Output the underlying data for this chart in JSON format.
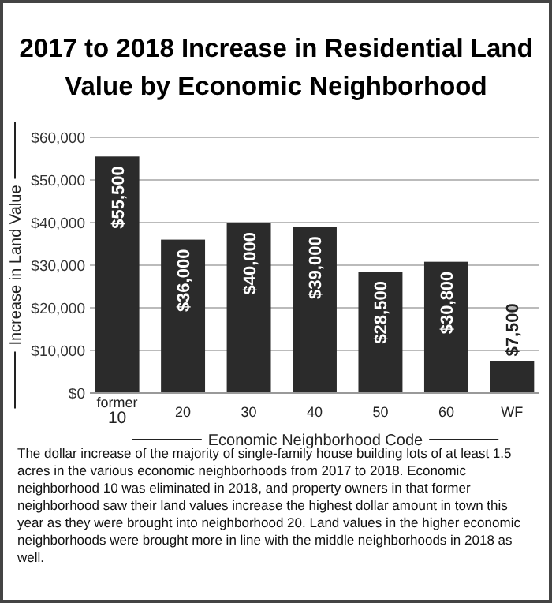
{
  "chart_data": {
    "type": "bar",
    "title": "2017 to 2018 Increase in Residential Land Value by Economic Neighborhood",
    "xlabel": "Economic Neighborhood Code",
    "ylabel": "Increase in Land Value",
    "categories": [
      "former 10",
      "20",
      "30",
      "40",
      "50",
      "60",
      "WF"
    ],
    "values": [
      55500,
      36000,
      40000,
      39000,
      28500,
      30800,
      7500
    ],
    "value_labels": [
      "$55,500",
      "$36,000",
      "$40,000",
      "$39,000",
      "$28,500",
      "$30,800",
      "$7,500"
    ],
    "color": "#2b2b2b",
    "ylim": [
      0,
      60000
    ],
    "yticks": [
      {
        "value": 0,
        "label": "$0"
      },
      {
        "value": 10000,
        "label": "$10,000"
      },
      {
        "value": 20000,
        "label": "$20,000"
      },
      {
        "value": 30000,
        "label": "$30,000"
      },
      {
        "value": 40000,
        "label": "$40,000"
      },
      {
        "value": 50000,
        "label": "$50,000"
      },
      {
        "value": 60000,
        "label": "$60,000"
      }
    ],
    "grid": "y",
    "annotations": [
      "The dollar increase of the majority of single-family house building lots of at least 1.5 acres in the various economic neighborhoods from 2017 to 2018. Economic neighborhood 10 was eliminated in 2018, and property owners in that former neighborhood saw their land values increase the highest dollar amount in town this year as they were brought into neighborhood 20. Land values in the higher economic neighborhoods were brought more in line with the middle neighborhoods in 2018 as well."
    ]
  }
}
